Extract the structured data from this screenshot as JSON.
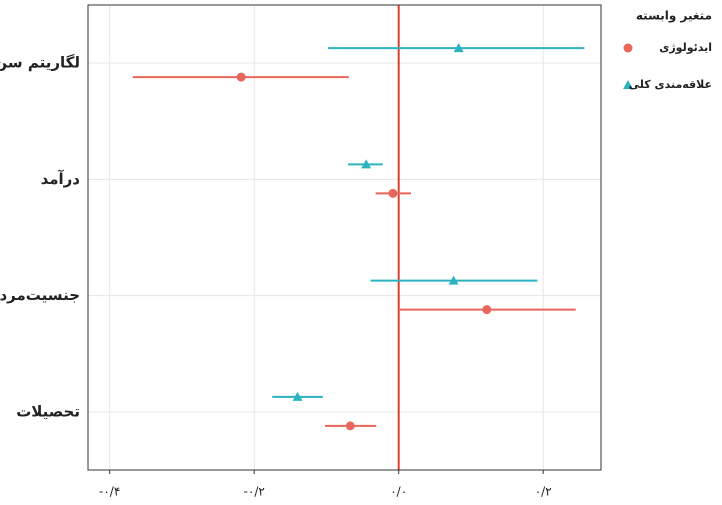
{
  "chart_data": {
    "type": "coefficient",
    "categories": [
      "لگاریتم سن",
      "درآمد",
      "جنسیت‌مرد",
      "تحصیلات"
    ],
    "series": [
      {
        "name": "ایدئولوژی",
        "color": "#e8665b",
        "marker": "circle",
        "values": [
          -0.218,
          -0.008,
          0.122,
          -0.067
        ],
        "lower": [
          -0.368,
          -0.032,
          0.0,
          -0.102
        ],
        "upper": [
          -0.069,
          0.017,
          0.245,
          -0.031
        ]
      },
      {
        "name": "علاقه‌مندی کلی",
        "color": "#2bb3c0",
        "marker": "triangle",
        "values": [
          0.083,
          -0.045,
          0.076,
          -0.14
        ],
        "lower": [
          -0.098,
          -0.07,
          -0.039,
          -0.175
        ],
        "upper": [
          0.257,
          -0.022,
          0.192,
          -0.105
        ]
      }
    ],
    "legend_title": "متغیر وابسته",
    "reference_line": 0,
    "reference_color": "#d9412f",
    "xlim": [
      -0.43,
      0.28
    ],
    "xticks": [
      {
        "value": -0.4,
        "label": "-۰/۴"
      },
      {
        "value": -0.2,
        "label": "-۰/۲"
      },
      {
        "value": 0,
        "label": "۰/۰"
      },
      {
        "value": 0.2,
        "label": "۰/۲"
      }
    ],
    "grid": true
  }
}
